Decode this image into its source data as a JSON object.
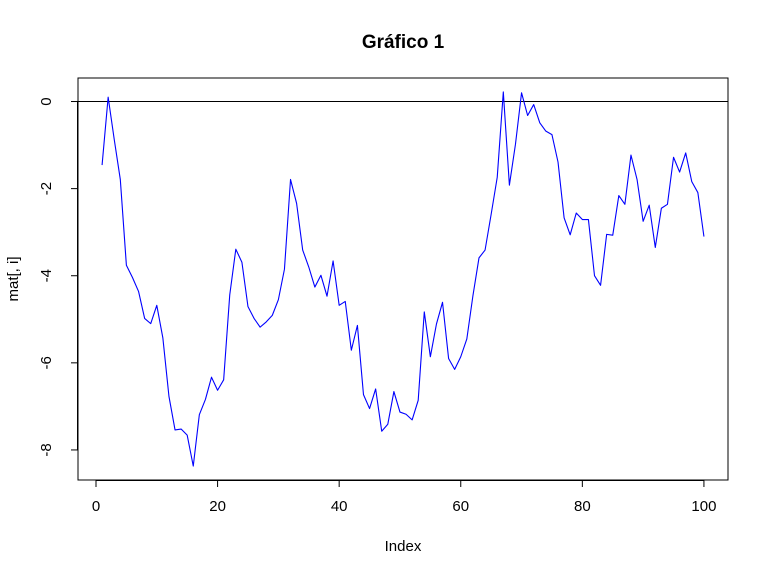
{
  "chart_data": {
    "type": "line",
    "title": "Gráfico 1",
    "xlabel": "Index",
    "ylabel": "mat[, i]",
    "xlim": [
      -2.96,
      103.96
    ],
    "ylim": [
      -8.69,
      0.54
    ],
    "xticks": [
      0,
      20,
      40,
      60,
      80,
      100
    ],
    "yticks": [
      0,
      -2,
      -4,
      -6,
      -8
    ],
    "xtick_labels": [
      "0",
      "20",
      "40",
      "60",
      "80",
      "100"
    ],
    "ytick_labels": [
      "0",
      "-2",
      "-4",
      "-6",
      "-8"
    ],
    "hline": 0,
    "line_color": "#0000ff",
    "grid": false,
    "series": [
      {
        "x": [
          1,
          2,
          3,
          4,
          5,
          6,
          7,
          8,
          9,
          10,
          11,
          12,
          13,
          14,
          15,
          16,
          17,
          18,
          19,
          20,
          21,
          22,
          23,
          24,
          25,
          26,
          27,
          28,
          29,
          30,
          31,
          32,
          33,
          34,
          35,
          36,
          37,
          38,
          39,
          40,
          41,
          42,
          43,
          44,
          45,
          46,
          47,
          48,
          49,
          50,
          51,
          52,
          53,
          54,
          55,
          56,
          57,
          58,
          59,
          60,
          61,
          62,
          63,
          64,
          65,
          66,
          67,
          68,
          69,
          70,
          71,
          72,
          73,
          74,
          75,
          76,
          77,
          78,
          79,
          80,
          81,
          82,
          83,
          84,
          85,
          86,
          87,
          88,
          89,
          90,
          91,
          92,
          93,
          94,
          95,
          96,
          97,
          98,
          99,
          100
        ],
        "values": [
          -1.46,
          0.1,
          -0.87,
          -1.79,
          -3.76,
          -4.04,
          -4.36,
          -4.98,
          -5.1,
          -4.68,
          -5.43,
          -6.77,
          -7.54,
          -7.52,
          -7.66,
          -8.37,
          -7.19,
          -6.84,
          -6.33,
          -6.63,
          -6.39,
          -4.44,
          -3.39,
          -3.69,
          -4.71,
          -4.98,
          -5.18,
          -5.06,
          -4.91,
          -4.55,
          -3.85,
          -1.79,
          -2.34,
          -3.41,
          -3.8,
          -4.26,
          -3.99,
          -4.47,
          -3.66,
          -4.68,
          -4.59,
          -5.71,
          -5.14,
          -6.73,
          -7.05,
          -6.6,
          -7.57,
          -7.41,
          -6.66,
          -7.13,
          -7.18,
          -7.31,
          -6.86,
          -4.83,
          -5.86,
          -5.11,
          -4.61,
          -5.9,
          -6.15,
          -5.86,
          -5.45,
          -4.46,
          -3.59,
          -3.41,
          -2.59,
          -1.74,
          0.22,
          -1.92,
          -0.98,
          0.2,
          -0.32,
          -0.07,
          -0.49,
          -0.68,
          -0.76,
          -1.39,
          -2.67,
          -3.06,
          -2.56,
          -2.71,
          -2.71,
          -4.0,
          -4.22,
          -3.05,
          -3.07,
          -2.16,
          -2.36,
          -1.23,
          -1.79,
          -2.75,
          -2.38,
          -3.35,
          -2.45,
          -2.36,
          -1.28,
          -1.62,
          -1.18,
          -1.84,
          -2.09,
          -3.1
        ]
      }
    ]
  }
}
